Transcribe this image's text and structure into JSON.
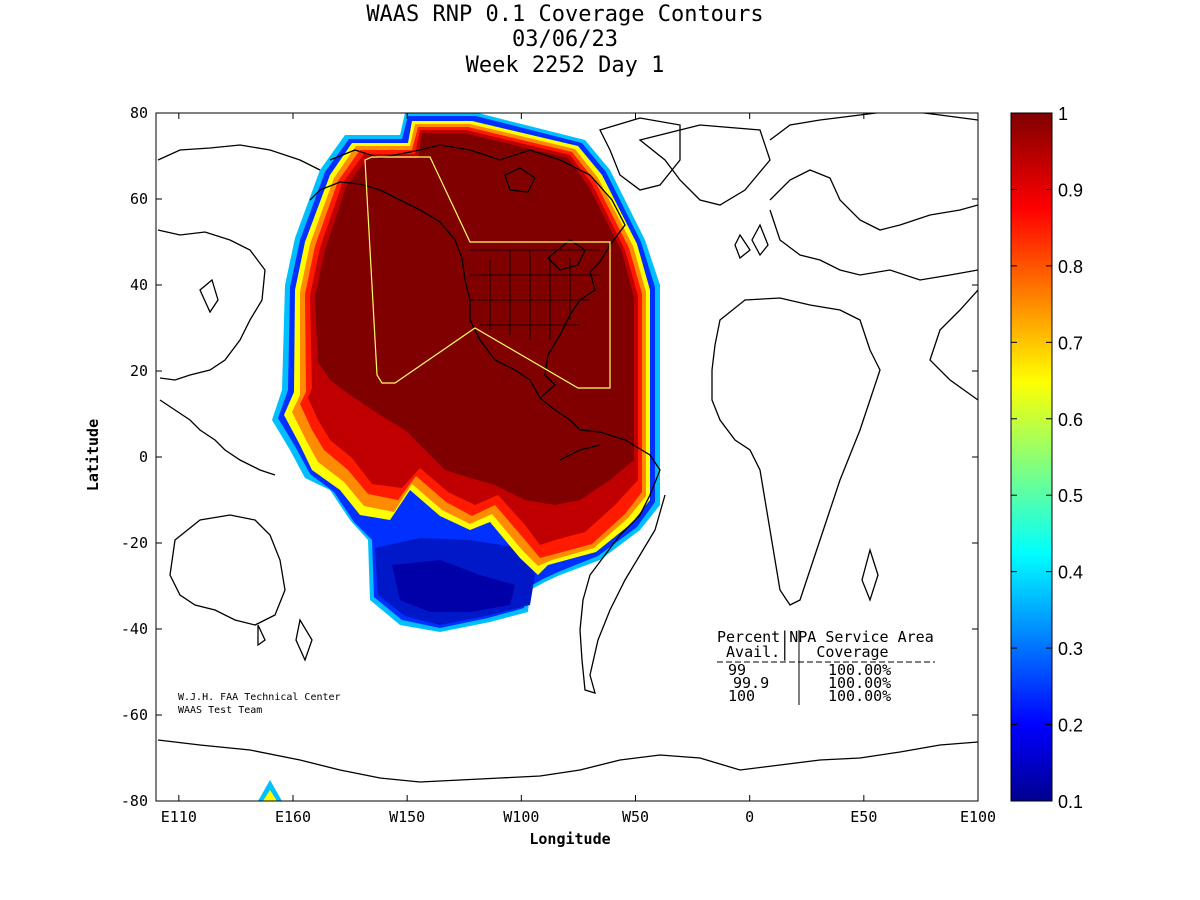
{
  "title": {
    "line1": "WAAS RNP 0.1 Coverage Contours",
    "line2": "03/06/23",
    "line3": "Week 2252 Day 1"
  },
  "axes": {
    "xlabel": "Longitude",
    "ylabel": "Latitude",
    "xticks": [
      "E110",
      "E160",
      "W150",
      "W100",
      "W50",
      "0",
      "E50",
      "E100"
    ],
    "xtick_lon": [
      -250,
      -200,
      -150,
      -100,
      -50,
      0,
      50,
      100
    ],
    "yticks": [
      "80",
      "60",
      "40",
      "20",
      "0",
      "-20",
      "-40",
      "-60",
      "-80"
    ],
    "ytick_lat": [
      80,
      60,
      40,
      20,
      0,
      -20,
      -40,
      -60,
      -80
    ],
    "lon_range": [
      -260,
      100
    ],
    "lat_range": [
      -80,
      80
    ]
  },
  "colorbar": {
    "ticks": [
      "1",
      "0.9",
      "0.8",
      "0.7",
      "0.6",
      "0.5",
      "0.4",
      "0.3",
      "0.2",
      "0.1"
    ],
    "values": [
      1,
      0.9,
      0.8,
      0.7,
      0.6,
      0.5,
      0.4,
      0.3,
      0.2,
      0.1
    ],
    "range": [
      0.1,
      1
    ]
  },
  "credit": {
    "line1": "W.J.H. FAA Technical Center",
    "line2": "WAAS Test Team"
  },
  "table": {
    "header1": "Percent|NPA Service Area",
    "header2": " Avail.|   Coverage",
    "rows": [
      {
        "avail": "99",
        "coverage": "100.00%"
      },
      {
        "avail": "99.9",
        "coverage": "100.00%"
      },
      {
        "avail": "100",
        "coverage": "100.00%"
      }
    ]
  },
  "map": {
    "style": "coastline outline, equirectangular",
    "service_area_outline_color": "#ffff66",
    "colormap": "jet"
  }
}
